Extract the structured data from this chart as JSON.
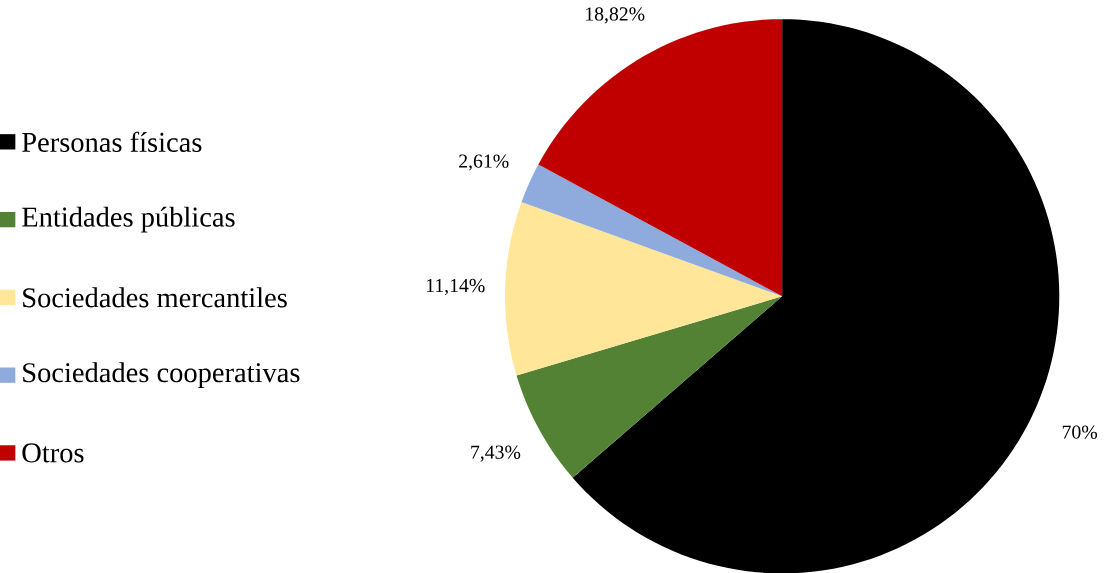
{
  "chart_data": {
    "type": "pie",
    "categories": [
      "Personas físicas",
      "Entidades públicas",
      "Sociedades mercantiles",
      "Sociedades cooperativas",
      "Otros"
    ],
    "values": [
      70,
      7.43,
      11.14,
      2.61,
      18.82
    ],
    "value_labels": [
      "70%",
      "7,43%",
      "11,14%",
      "2,61%",
      "18,82%"
    ],
    "colors": [
      "#000000",
      "#548235",
      "#ffe699",
      "#8faadc",
      "#c00000"
    ],
    "legend": "left"
  }
}
